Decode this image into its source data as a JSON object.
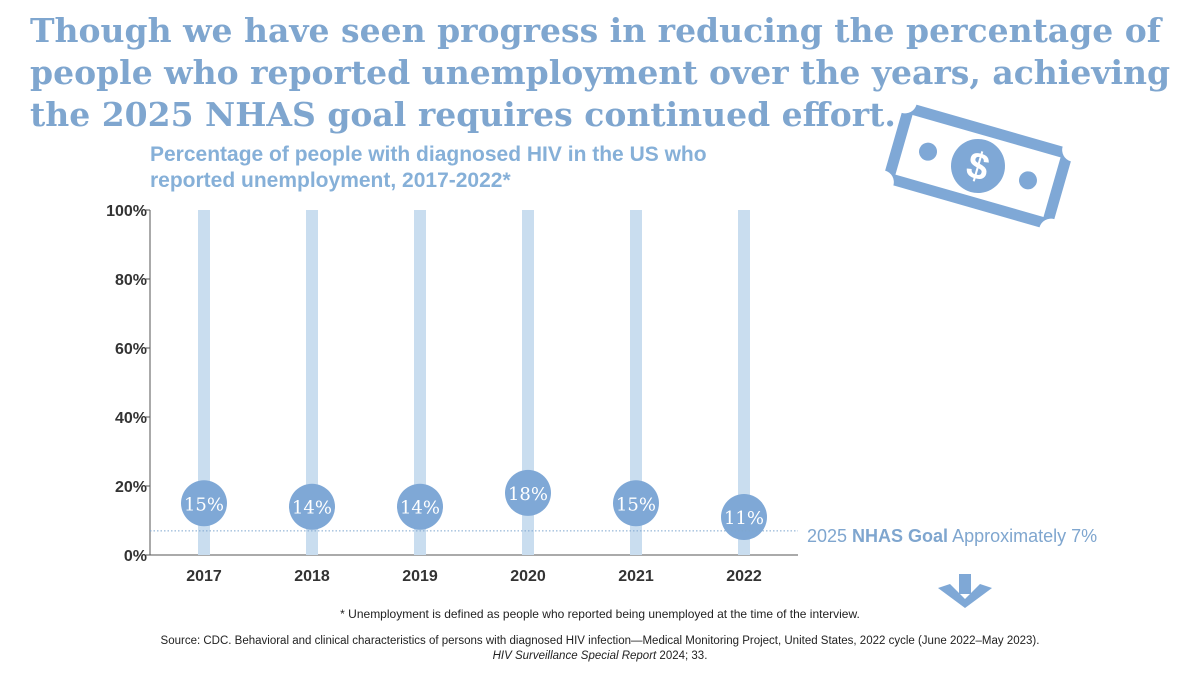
{
  "headline": "Though we have seen progress in reducing the percentage of people who reported unemployment over the years, achieving the 2025 NHAS goal requires continued effort.",
  "footnote": "* Unemployment is defined as people who reported being unemployed at the time of the interview.",
  "source_line1": "Source: CDC. Behavioral and clinical characteristics of persons with diagnosed HIV infection—Medical Monitoring Project, United States, 2022 cycle (June 2022–May 2023).",
  "source_journal": "HIV Surveillance Special Report",
  "source_tail": " 2024; 33.",
  "goal": {
    "prefix": "2025 ",
    "emph": "NHAS Goal",
    "suffix": " Approximately 7%",
    "value": 7
  },
  "icons": [
    "dollar-bill-icon",
    "down-arrow-icon"
  ],
  "colors": {
    "headline": "#7fa6cf",
    "bar_track": "#c9ddef",
    "bubble": "#7fa8d6",
    "bubble_text": "#ffffff",
    "goal_line": "#7fa6cf",
    "axis_text": "#333333"
  },
  "chart_data": {
    "type": "bar",
    "title": "Percentage of people with diagnosed HIV in the US who reported unemployment, 2017-2022*",
    "categories": [
      "2017",
      "2018",
      "2019",
      "2020",
      "2021",
      "2022"
    ],
    "values": [
      15,
      14,
      14,
      18,
      15,
      11
    ],
    "data_labels": [
      "15%",
      "14%",
      "14%",
      "18%",
      "15%",
      "11%"
    ],
    "ylim": [
      0,
      100
    ],
    "yticks": [
      0,
      20,
      40,
      60,
      80,
      100
    ],
    "ytick_labels": [
      "0%",
      "20%",
      "40%",
      "60%",
      "80%",
      "100%"
    ],
    "xlabel": "",
    "ylabel": "",
    "goal_line": 7
  }
}
